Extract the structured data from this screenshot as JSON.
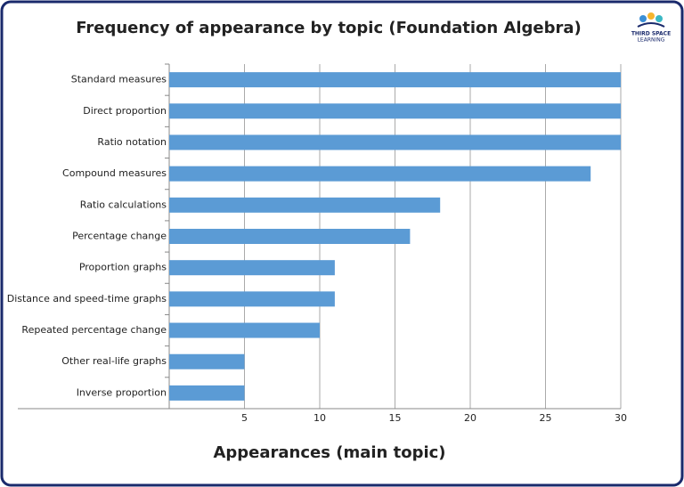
{
  "chart_data": {
    "type": "barh",
    "title": "Frequency of appearance by topic (Foundation Algebra)",
    "x_label": "Appearances (main topic)",
    "categories": [
      "Standard measures",
      "Direct proportion",
      "Ratio notation",
      "Compound measures",
      "Ratio calculations",
      "Percentage change",
      "Proportion graphs",
      "Distance and speed-time graphs",
      "Repeated percentage change",
      "Other real-life graphs",
      "Inverse proportion"
    ],
    "values": [
      30,
      30,
      30,
      28,
      18,
      16,
      11,
      11,
      10,
      5,
      5
    ],
    "color": "#5b9bd5",
    "xlim": [
      0,
      30
    ],
    "xticks": [
      5,
      10,
      15,
      20,
      25,
      30
    ],
    "grid": true
  },
  "logo": {
    "line1": "THIRD SPACE",
    "line2": "LEARNING"
  }
}
